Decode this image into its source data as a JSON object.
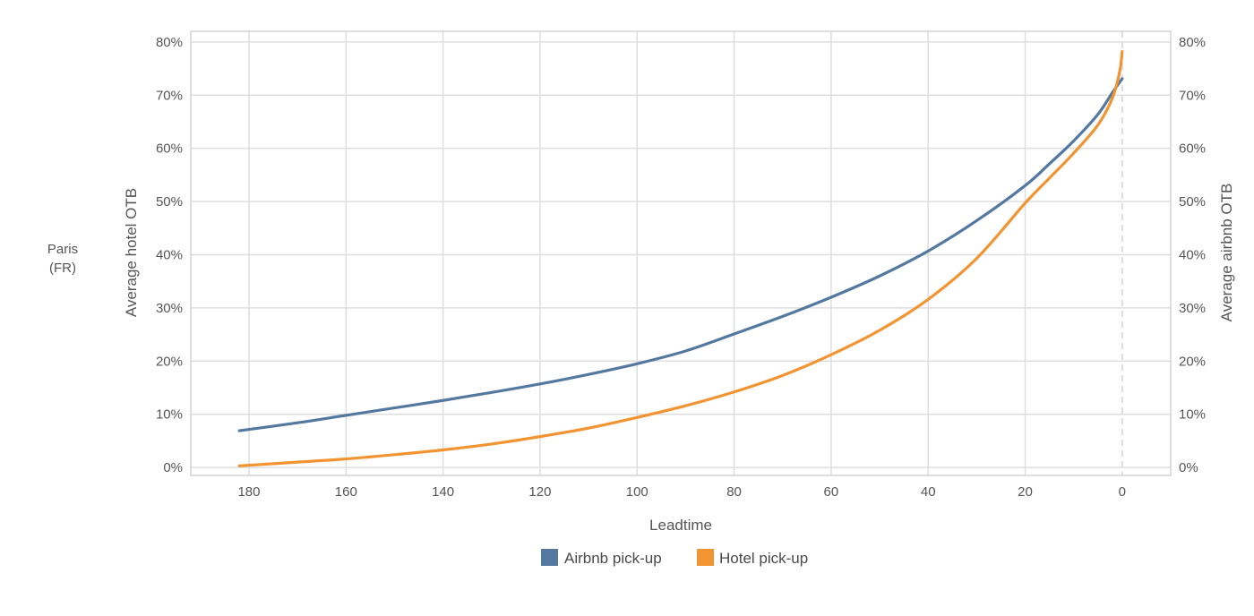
{
  "chart_data": {
    "type": "line",
    "location": {
      "line1": "Paris",
      "line2": "(FR)"
    },
    "xlabel": "Leadtime",
    "ylabel_left": "Average hotel OTB",
    "ylabel_right": "Average airbnb OTB",
    "xlim": [
      192,
      -10
    ],
    "ylim": [
      -1.5,
      82
    ],
    "x_ticks": [
      180,
      160,
      140,
      120,
      100,
      80,
      60,
      40,
      20,
      0
    ],
    "x_tick_labels": [
      "180",
      "160",
      "140",
      "120",
      "100",
      "80",
      "60",
      "40",
      "20",
      "0"
    ],
    "y_ticks": [
      0,
      10,
      20,
      30,
      40,
      50,
      60,
      70,
      80
    ],
    "y_tick_labels": [
      "0%",
      "10%",
      "20%",
      "30%",
      "40%",
      "50%",
      "60%",
      "70%",
      "80%"
    ],
    "y_right_tick_labels": [
      "0%",
      "10%",
      "20%",
      "30%",
      "40%",
      "50%",
      "60%",
      "70%",
      "80%"
    ],
    "grid": true,
    "reference_line_x": 0,
    "legend_position": "bottom-center",
    "series": [
      {
        "name": "Airbnb pick-up",
        "color": "#5479a1",
        "x": [
          182,
          170,
          160,
          150,
          140,
          130,
          120,
          110,
          100,
          90,
          80,
          70,
          60,
          50,
          40,
          30,
          20,
          15,
          10,
          5,
          2,
          0
        ],
        "values": [
          6.9,
          8.4,
          9.8,
          11.2,
          12.6,
          14.1,
          15.7,
          17.5,
          19.5,
          21.9,
          25.1,
          28.4,
          32.0,
          36.0,
          40.7,
          46.4,
          53.0,
          57.1,
          61.4,
          66.4,
          70.5,
          73.1
        ]
      },
      {
        "name": "Hotel pick-up",
        "color": "#f39433",
        "x": [
          182,
          170,
          160,
          150,
          140,
          130,
          120,
          110,
          100,
          90,
          80,
          70,
          60,
          50,
          40,
          30,
          20,
          15,
          10,
          5,
          2,
          0.5,
          0
        ],
        "values": [
          0.3,
          1.0,
          1.6,
          2.4,
          3.3,
          4.4,
          5.8,
          7.4,
          9.4,
          11.6,
          14.2,
          17.3,
          21.2,
          25.8,
          31.6,
          39.3,
          49.7,
          54.4,
          59.1,
          64.4,
          69.5,
          74.5,
          78.2
        ]
      }
    ]
  }
}
